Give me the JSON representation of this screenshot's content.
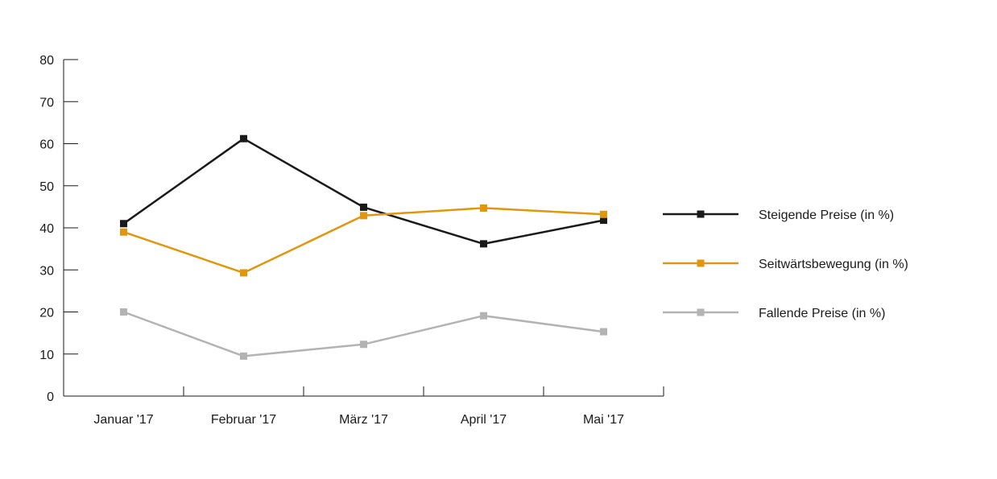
{
  "chart_data": {
    "type": "line",
    "title": "",
    "xlabel": "",
    "ylabel": "",
    "categories": [
      "Januar '17",
      "Februar '17",
      "März '17",
      "April '17",
      "Mai '17"
    ],
    "ylim": [
      0,
      80
    ],
    "yticks": [
      0,
      10,
      20,
      30,
      40,
      50,
      60,
      70,
      80
    ],
    "grid": false,
    "legend_position": "right",
    "series": [
      {
        "name": "Steigende Preise (in %)",
        "color": "#1a1a1a",
        "values": [
          41,
          61.2,
          44.9,
          36.2,
          41.8
        ]
      },
      {
        "name": "Seitwärtsbewegung (in %)",
        "color": "#e0960f",
        "values": [
          39,
          29.3,
          42.9,
          44.7,
          43.2
        ]
      },
      {
        "name": "Fallende Preise (in %)",
        "color": "#b3b3b3",
        "values": [
          20,
          9.5,
          12.3,
          19.1,
          15.3
        ]
      }
    ]
  }
}
